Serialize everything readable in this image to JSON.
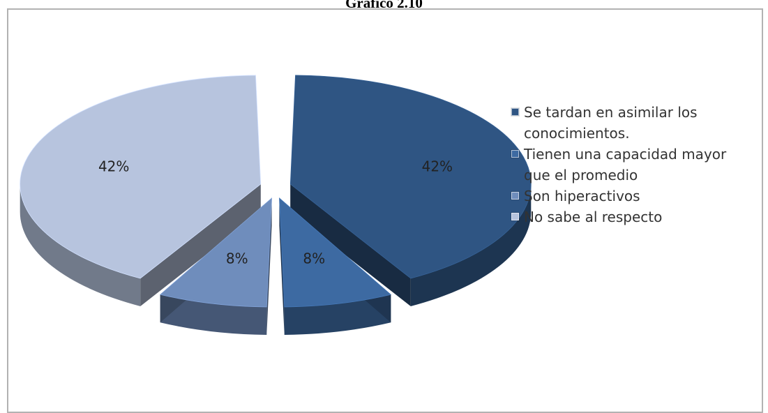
{
  "chart_data": {
    "type": "pie",
    "title": "Gráfico 2.10",
    "categories": [
      "Se tardan en asimilar los conocimientos.",
      "Tienen una capacidad mayor que el promedio",
      "Son hiperactivos",
      "No sabe al respecto"
    ],
    "values": [
      42,
      8,
      8,
      42
    ],
    "data_labels": [
      "42%",
      "8%",
      "8%",
      "42%"
    ],
    "colors": [
      "#2f5583",
      "#3d6aa2",
      "#6f8dbc",
      "#b7c4de"
    ],
    "legend_position": "right",
    "exploded": true,
    "three_d": true
  }
}
